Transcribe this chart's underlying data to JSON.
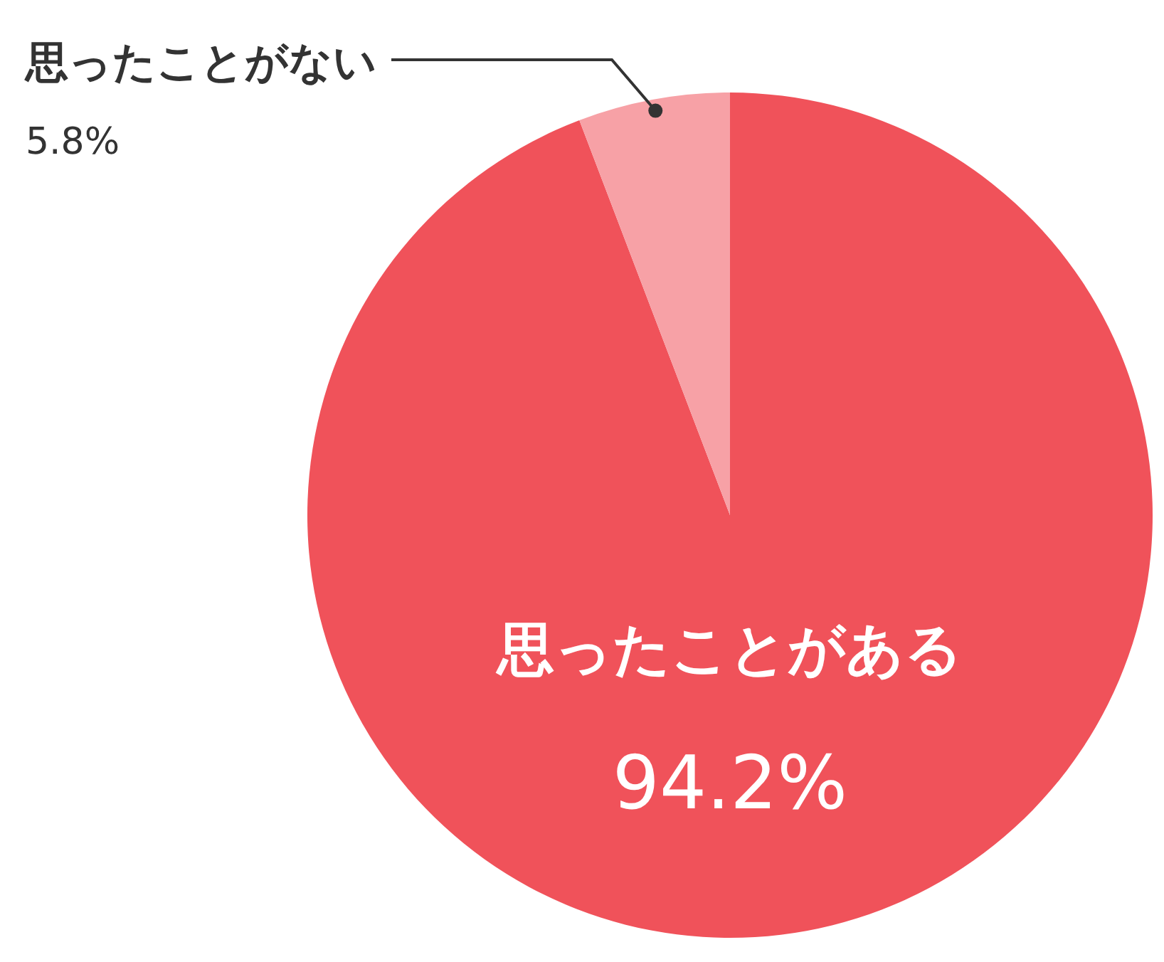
{
  "chart_data": {
    "type": "pie",
    "categories": [
      "思ったことがある",
      "思ったことがない"
    ],
    "values": [
      94.2,
      5.8
    ],
    "colors": [
      "#f0525a",
      "#f7a1a6"
    ],
    "value_labels": [
      "94.2%",
      "5.8%"
    ]
  }
}
